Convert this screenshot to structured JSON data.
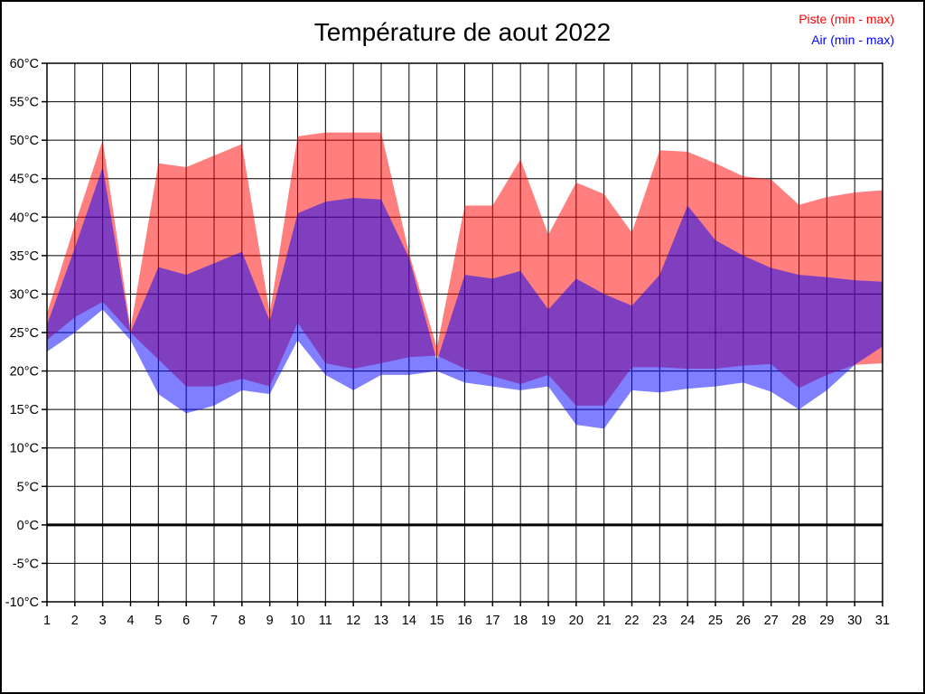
{
  "title": "Température de aout 2022",
  "legend": {
    "piste_label": "Piste (min - max)",
    "air_label": "Air (min - max)",
    "piste_color": "#ff0000",
    "air_color": "#0000ff"
  },
  "axes": {
    "y_tick_labels": [
      "60°C",
      "55°C",
      "50°C",
      "45°C",
      "40°C",
      "35°C",
      "30°C",
      "25°C",
      "20°C",
      "15°C",
      "10°C",
      "5°C",
      "0°C",
      "-5°C",
      "-10°C"
    ],
    "x_tick_labels": [
      "1",
      "2",
      "3",
      "4",
      "5",
      "6",
      "7",
      "8",
      "9",
      "10",
      "11",
      "12",
      "13",
      "14",
      "15",
      "16",
      "17",
      "18",
      "19",
      "20",
      "21",
      "22",
      "23",
      "24",
      "25",
      "26",
      "27",
      "28",
      "29",
      "30",
      "31"
    ],
    "zero_line_value": 0,
    "grid_color": "#000000",
    "zero_line_width": 3
  },
  "chart_data": {
    "type": "area",
    "title": "Température de aout 2022",
    "x": [
      1,
      2,
      3,
      4,
      5,
      6,
      7,
      8,
      9,
      10,
      11,
      12,
      13,
      14,
      15,
      16,
      17,
      18,
      19,
      20,
      21,
      22,
      23,
      24,
      25,
      26,
      27,
      28,
      29,
      30,
      31
    ],
    "ylim": [
      -10,
      60
    ],
    "ytick_step": 5,
    "grid": true,
    "legend_position": "top-right",
    "band_opacity": 0.5,
    "series": [
      {
        "name": "Piste (min - max)",
        "color": "#ff0000",
        "min": [
          24,
          27,
          29,
          25,
          21.5,
          18,
          18,
          19,
          18,
          26.3,
          21,
          20.3,
          21,
          21.8,
          22,
          20.3,
          19.3,
          18.3,
          19.5,
          15.5,
          15.5,
          20.5,
          20.5,
          20.3,
          20.3,
          20.7,
          20.9,
          17.8,
          19.5,
          20.8,
          21
        ],
        "max": [
          27.5,
          39,
          50,
          25.5,
          47,
          46.5,
          48,
          49.5,
          27.5,
          50.5,
          51,
          51,
          51,
          35.3,
          23,
          41.5,
          41.5,
          47.5,
          37.7,
          44.5,
          43,
          38,
          48.7,
          48.5,
          47,
          45.3,
          44.9,
          41.6,
          42.6,
          43.2,
          43.5
        ]
      },
      {
        "name": "Air (min - max)",
        "color": "#0000ff",
        "min": [
          22.5,
          25,
          28,
          24,
          17,
          14.5,
          15.5,
          17.5,
          17,
          24,
          19.5,
          17.5,
          19.5,
          19.5,
          20,
          18.5,
          18,
          17.5,
          18,
          13,
          12.5,
          17.5,
          17.2,
          17.7,
          18,
          18.5,
          17.3,
          15,
          17.5,
          20.8,
          23.2
        ],
        "max": [
          26,
          36,
          46.5,
          25,
          33.5,
          32.5,
          34,
          35.5,
          26.5,
          40.5,
          42,
          42.5,
          42.3,
          34.7,
          21.3,
          32.5,
          32,
          33,
          28,
          32,
          30,
          28.5,
          32.5,
          41.5,
          37,
          35,
          33.4,
          32.5,
          32.2,
          31.8,
          31.6
        ]
      }
    ]
  }
}
